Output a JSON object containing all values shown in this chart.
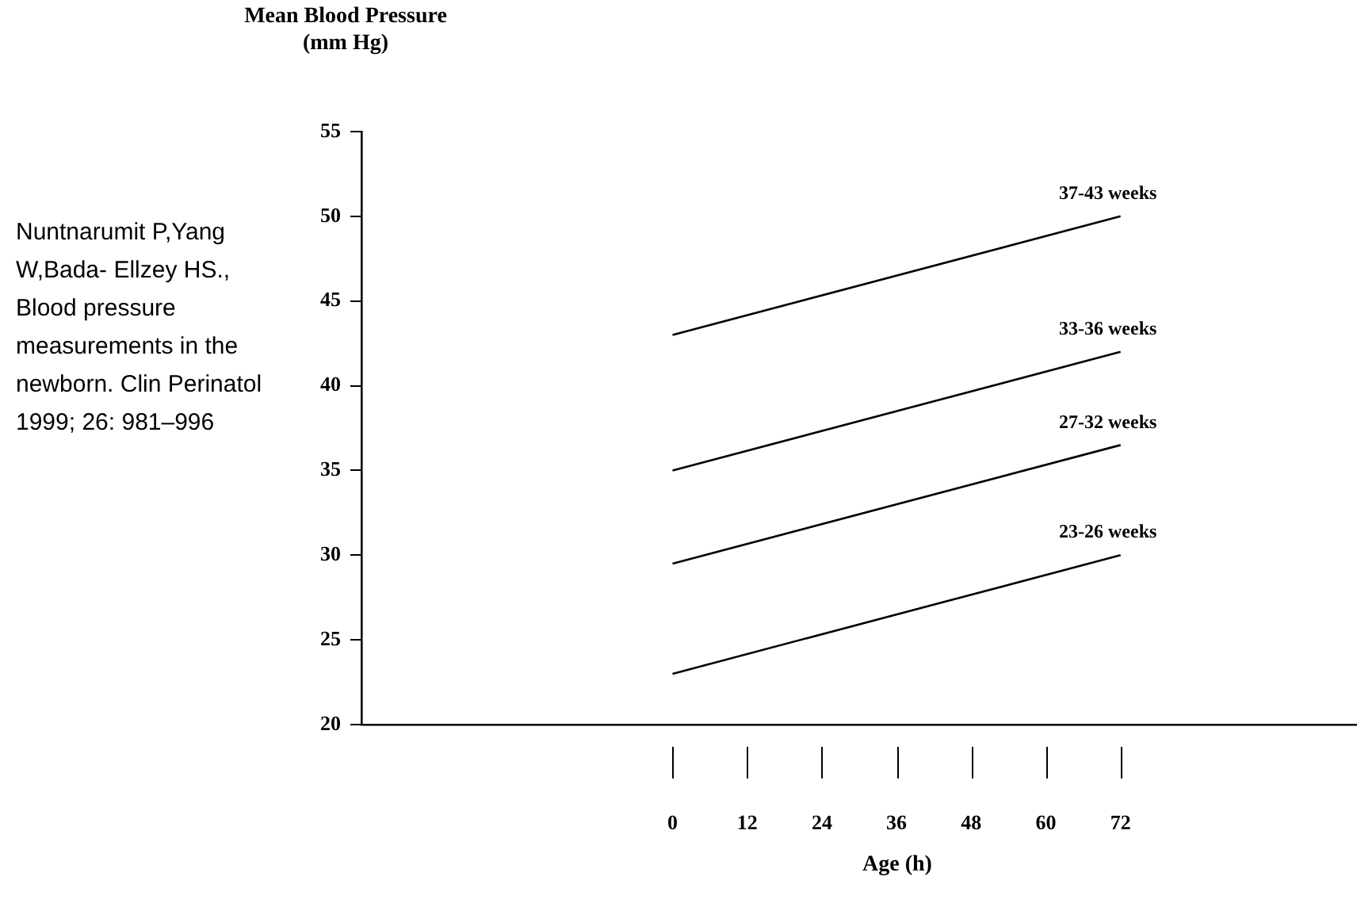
{
  "chart_data": {
    "type": "line",
    "ylabel": "Mean Blood Pressure (mm Hg)",
    "xlabel": "Age (h)",
    "x": [
      0,
      72
    ],
    "series": [
      {
        "name": "37-43 weeks",
        "color": "#000000",
        "values": [
          43,
          50
        ]
      },
      {
        "name": "33-36 weeks",
        "color": "#000000",
        "values": [
          35,
          42
        ]
      },
      {
        "name": "27-32 weeks",
        "color": "#000000",
        "values": [
          29.5,
          36.5
        ]
      },
      {
        "name": "23-26 weeks",
        "color": "#000000",
        "values": [
          23,
          30
        ]
      }
    ],
    "xlim": [
      -50,
      110
    ],
    "xticks": [
      0,
      12,
      24,
      36,
      48,
      60,
      72
    ],
    "ylim": [
      20,
      55
    ],
    "yticks": [
      20,
      25,
      30,
      35,
      40,
      45,
      50,
      55
    ],
    "grid": false,
    "legend": false,
    "marker": "none",
    "line_style": "solid",
    "annotations": [
      "Nuntnarumit P,Yang W,Bada- Ellzey HS., Blood pressure measurements in the newborn. Clin Perinatol 1999; 26: 981–996"
    ]
  }
}
